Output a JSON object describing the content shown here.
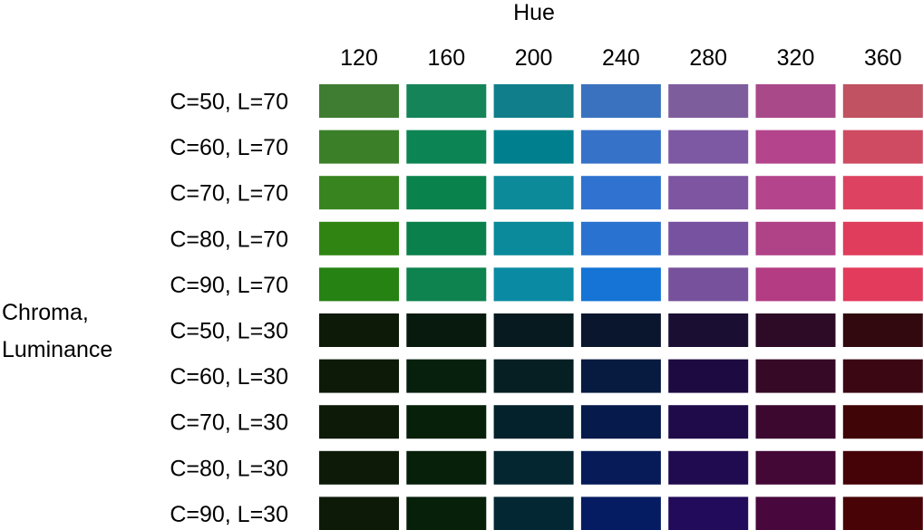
{
  "chart_data": {
    "type": "heatmap",
    "title": "",
    "xlabel": "Hue",
    "ylabel_lines": [
      "Chroma,",
      "Luminance"
    ],
    "x": [
      "120",
      "160",
      "200",
      "240",
      "280",
      "320",
      "360"
    ],
    "y": [
      "C=50, L=70",
      "C=60, L=70",
      "C=70, L=70",
      "C=80, L=70",
      "C=90, L=70",
      "C=50, L=30",
      "C=60, L=30",
      "C=70, L=30",
      "C=80, L=30",
      "C=90, L=30"
    ],
    "colors": [
      [
        "#3F7D32",
        "#158459",
        "#107E8B",
        "#3A72BF",
        "#7E5D9C",
        "#A9498A",
        "#C05261"
      ],
      [
        "#3B8029",
        "#0C8453",
        "#00808E",
        "#3772C9",
        "#7D59A3",
        "#B4448C",
        "#CF4B62"
      ],
      [
        "#38851F",
        "#0A824C",
        "#0D8A99",
        "#2F72D0",
        "#7D55A0",
        "#B4448C",
        "#DD4360"
      ],
      [
        "#308512",
        "#0A804C",
        "#0A8A9A",
        "#2A72D0",
        "#7652A0",
        "#B04288",
        "#E03D5C"
      ],
      [
        "#268213",
        "#0E824F",
        "#0B8AA3",
        "#1574D5",
        "#77519C",
        "#B33C83",
        "#E33B5B"
      ],
      [
        "#0D1A08",
        "#081A0D",
        "#061A1F",
        "#09162E",
        "#1A0F33",
        "#2D0A26",
        "#31090F"
      ],
      [
        "#0D1A08",
        "#06200D",
        "#061F23",
        "#071A40",
        "#1C0A40",
        "#360A26",
        "#3A0712"
      ],
      [
        "#0D1A08",
        "#06200A",
        "#04222B",
        "#071A4C",
        "#1F0A4A",
        "#3D0830",
        "#3F0507"
      ],
      [
        "#0D1A08",
        "#06200A",
        "#032630",
        "#071B58",
        "#200B50",
        "#430836",
        "#450308"
      ],
      [
        "#0D1A08",
        "#06200A",
        "#042833",
        "#061C62",
        "#220B5A",
        "#48083D",
        "#470306"
      ]
    ]
  }
}
